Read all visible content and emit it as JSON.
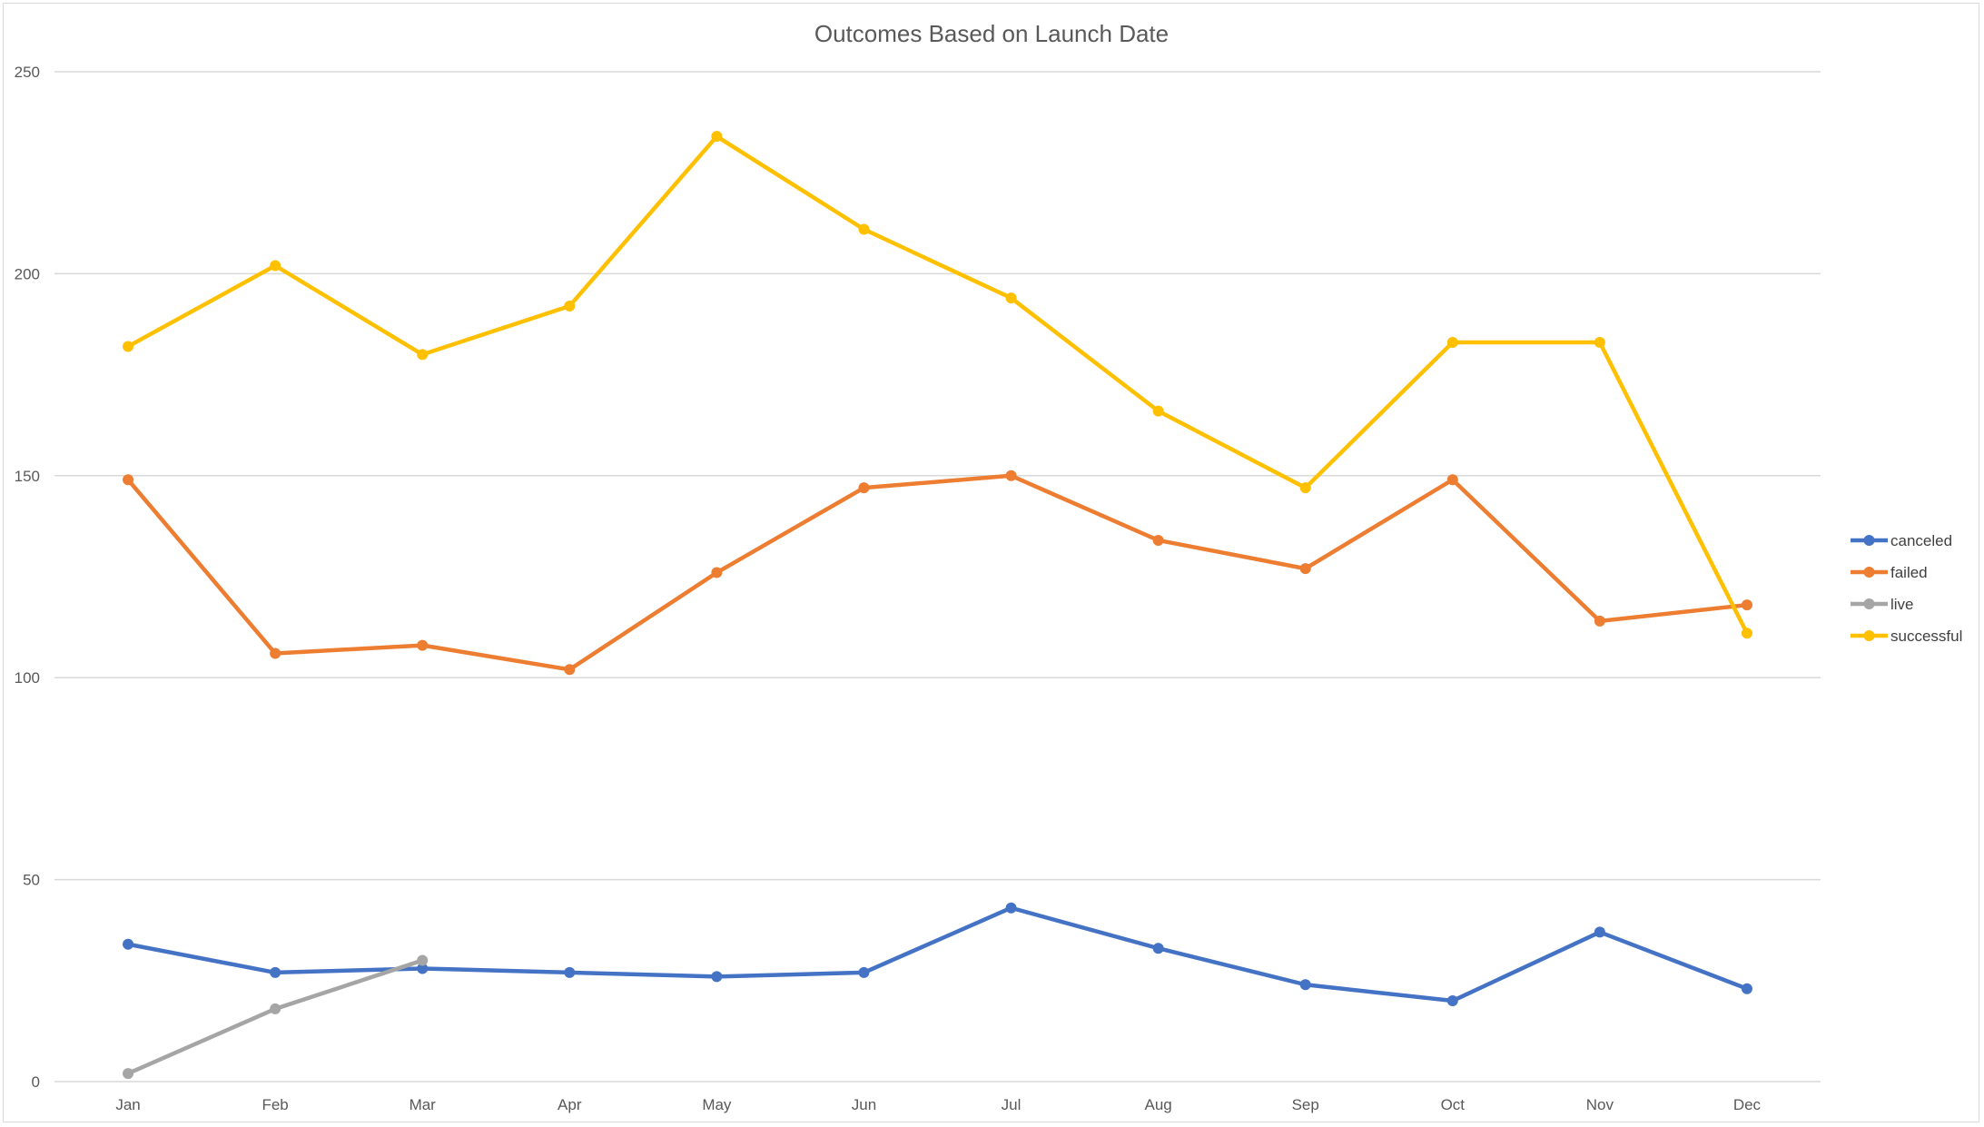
{
  "chart_data": {
    "type": "line",
    "title": "Outcomes Based on Launch Date",
    "xlabel": "",
    "ylabel": "",
    "categories": [
      "Jan",
      "Feb",
      "Mar",
      "Apr",
      "May",
      "Jun",
      "Jul",
      "Aug",
      "Sep",
      "Oct",
      "Nov",
      "Dec"
    ],
    "ylim": [
      0,
      250
    ],
    "yticks": [
      0,
      50,
      100,
      150,
      200,
      250
    ],
    "grid": true,
    "legend_position": "right",
    "series": [
      {
        "name": "canceled",
        "color": "#4472c4",
        "values": [
          34,
          27,
          28,
          27,
          26,
          27,
          43,
          33,
          24,
          20,
          37,
          23
        ]
      },
      {
        "name": "failed",
        "color": "#ed7d31",
        "values": [
          149,
          106,
          108,
          102,
          126,
          147,
          150,
          134,
          127,
          149,
          114,
          118
        ]
      },
      {
        "name": "live",
        "color": "#a5a5a5",
        "values": [
          2,
          18,
          30,
          null,
          null,
          null,
          null,
          null,
          null,
          null,
          null,
          null
        ]
      },
      {
        "name": "successful",
        "color": "#ffc000",
        "values": [
          182,
          202,
          180,
          192,
          234,
          211,
          194,
          166,
          147,
          183,
          183,
          111
        ]
      }
    ]
  }
}
